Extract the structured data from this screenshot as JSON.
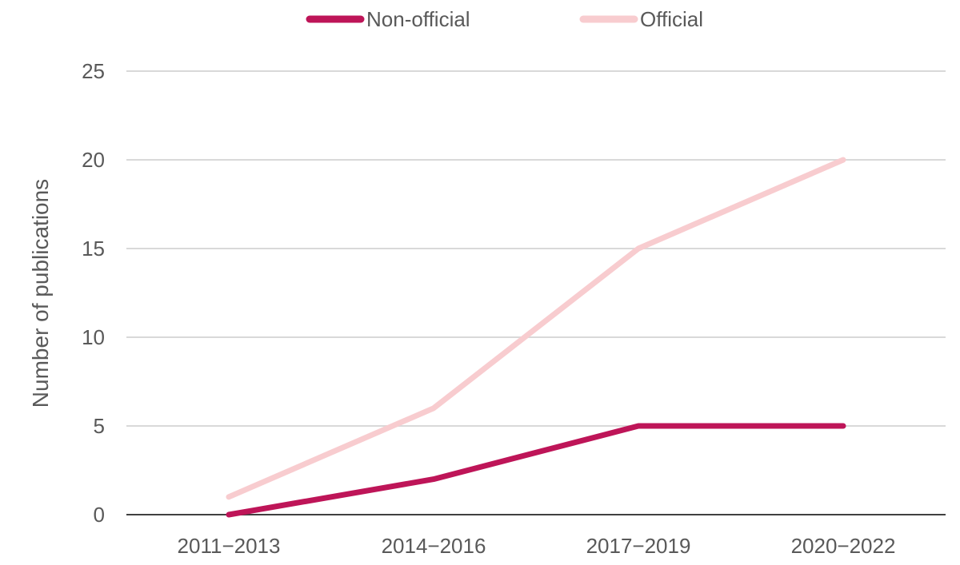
{
  "chart_data": {
    "type": "line",
    "categories": [
      "2011−2013",
      "2014−2016",
      "2017−2019",
      "2020−2022"
    ],
    "series": [
      {
        "name": "Non-official",
        "values": [
          0,
          2,
          5,
          5
        ],
        "color": "#be1558"
      },
      {
        "name": "Official",
        "values": [
          1,
          6,
          15,
          20
        ],
        "color": "#f8cccf"
      }
    ],
    "ylabel": "Number of publications",
    "ylim": [
      0,
      25
    ],
    "yticks": [
      0,
      5,
      10,
      15,
      20,
      25
    ],
    "grid": true,
    "legend_position": "top",
    "colors": {
      "grid": "#d9d9d9",
      "axis": "#404040",
      "text": "#595959"
    }
  }
}
